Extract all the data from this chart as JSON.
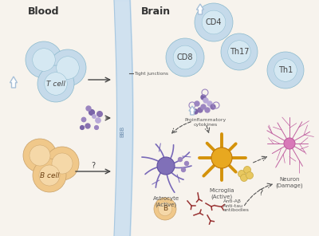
{
  "bg_color": "#f7f3ed",
  "blood_label": "Blood",
  "brain_label": "Brain",
  "t_cell_label": "T cell",
  "b_cell_label": "B cell",
  "cd4_label": "CD4",
  "cd8_label": "CD8",
  "th17_label": "Th17",
  "th1_label": "Th1",
  "tight_junctions_label": "Tight junctions",
  "bbb_label": "BBB",
  "proinflammatory_label": "Proinflammatory\ncytokines",
  "astrocyte_label": "Astrocyte\n(Active)",
  "microglia_label": "Microglia\n(Active)",
  "neuron_label": "Neuron\n(Damage)",
  "antibody_label": "Anti-Aβ\nAnti-tau\nantibodies",
  "b_brain_label": "B",
  "cell_blue_light": "#c5daea",
  "cell_blue_mid": "#aacde0",
  "cell_blue_inner": "#d5e8f2",
  "cell_orange_light": "#f0c88a",
  "cell_orange_mid": "#e8b870",
  "cell_orange_inner": "#f5d8a8",
  "barrier_fill": "#ccdff0",
  "barrier_edge": "#a8c8e0",
  "arrow_color": "#555555",
  "label_color": "#444444",
  "cytokine_dot_colors": [
    "#9b85c0",
    "#7a64a8",
    "#b8a8d8",
    "#8870b0"
  ],
  "astrocyte_color": "#7868b8",
  "astrocyte_body": "#6858a8",
  "microglia_color": "#d4920a",
  "microglia_body": "#e8a820",
  "neuron_color": "#c060a0",
  "neuron_body": "#d878b8",
  "antibody_color": "#993333",
  "up_arrow_color": "#a8c0d8"
}
